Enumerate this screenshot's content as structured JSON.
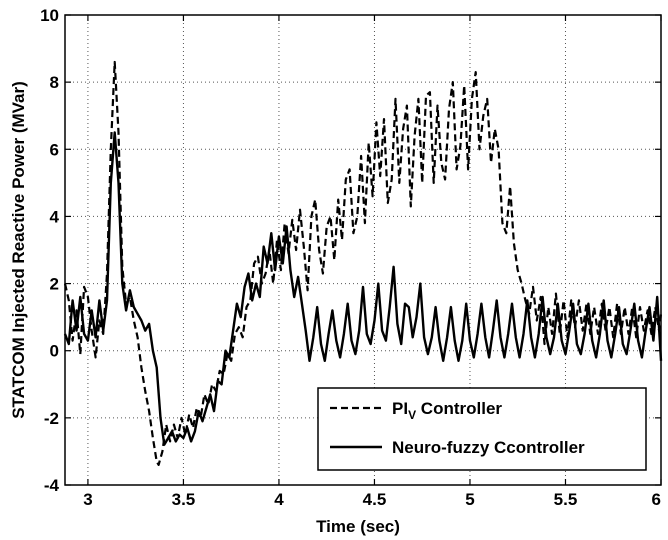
{
  "chart_data": {
    "type": "line",
    "xlabel": "Time (sec)",
    "ylabel": "STATCOM Injected Reactive Power (MVar)",
    "xlim": [
      2.88,
      6.0
    ],
    "ylim": [
      -4,
      10
    ],
    "x_ticks": [
      "3",
      "3.5",
      "4",
      "4.5",
      "5",
      "5.5",
      "6"
    ],
    "y_ticks": [
      "-4",
      "-2",
      "0",
      "2",
      "4",
      "6",
      "8",
      "10"
    ],
    "grid": true,
    "legend_position": "bottom-right",
    "series": [
      {
        "name": "PIV Controller",
        "legend_main": "PI",
        "legend_sub": "V",
        "legend_rest": " Controller",
        "style": "dashed",
        "color": "#000000",
        "points": [
          [
            2.88,
            2.0
          ],
          [
            2.9,
            1.5
          ],
          [
            2.92,
            0.3
          ],
          [
            2.94,
            1.2
          ],
          [
            2.96,
            -0.1
          ],
          [
            2.98,
            1.9
          ],
          [
            3.0,
            1.6
          ],
          [
            3.02,
            0.6
          ],
          [
            3.04,
            -0.2
          ],
          [
            3.06,
            0.9
          ],
          [
            3.08,
            0.5
          ],
          [
            3.1,
            2.3
          ],
          [
            3.12,
            6.0
          ],
          [
            3.14,
            8.6
          ],
          [
            3.16,
            6.5
          ],
          [
            3.18,
            2.5
          ],
          [
            3.2,
            1.4
          ],
          [
            3.22,
            1.6
          ],
          [
            3.24,
            0.9
          ],
          [
            3.26,
            0.4
          ],
          [
            3.28,
            -0.5
          ],
          [
            3.3,
            -1.2
          ],
          [
            3.32,
            -1.8
          ],
          [
            3.34,
            -2.6
          ],
          [
            3.36,
            -3.3
          ],
          [
            3.37,
            -3.4
          ],
          [
            3.39,
            -3.0
          ],
          [
            3.41,
            -2.2
          ],
          [
            3.43,
            -2.7
          ],
          [
            3.45,
            -2.2
          ],
          [
            3.47,
            -2.6
          ],
          [
            3.49,
            -2.0
          ],
          [
            3.51,
            -2.5
          ],
          [
            3.53,
            -1.9
          ],
          [
            3.55,
            -2.3
          ],
          [
            3.57,
            -1.7
          ],
          [
            3.59,
            -2.0
          ],
          [
            3.61,
            -1.3
          ],
          [
            3.63,
            -1.6
          ],
          [
            3.65,
            -1.0
          ],
          [
            3.67,
            -1.2
          ],
          [
            3.69,
            -0.6
          ],
          [
            3.71,
            -0.7
          ],
          [
            3.73,
            -0.1
          ],
          [
            3.75,
            -0.3
          ],
          [
            3.77,
            0.5
          ],
          [
            3.79,
            0.7
          ],
          [
            3.81,
            0.4
          ],
          [
            3.83,
            1.3
          ],
          [
            3.85,
            1.5
          ],
          [
            3.87,
            2.6
          ],
          [
            3.89,
            2.8
          ],
          [
            3.91,
            2.0
          ],
          [
            3.93,
            2.3
          ],
          [
            3.95,
            3.0
          ],
          [
            3.97,
            2.0
          ],
          [
            3.99,
            3.3
          ],
          [
            4.01,
            2.4
          ],
          [
            4.03,
            3.8
          ],
          [
            4.05,
            2.9
          ],
          [
            4.07,
            3.9
          ],
          [
            4.09,
            3.0
          ],
          [
            4.11,
            4.2
          ],
          [
            4.13,
            3.1
          ],
          [
            4.15,
            1.8
          ],
          [
            4.17,
            4.0
          ],
          [
            4.19,
            4.5
          ],
          [
            4.21,
            3.0
          ],
          [
            4.23,
            2.3
          ],
          [
            4.25,
            3.7
          ],
          [
            4.27,
            4.0
          ],
          [
            4.29,
            2.7
          ],
          [
            4.31,
            4.5
          ],
          [
            4.33,
            3.3
          ],
          [
            4.35,
            5.1
          ],
          [
            4.37,
            5.4
          ],
          [
            4.39,
            3.5
          ],
          [
            4.41,
            4.0
          ],
          [
            4.43,
            5.8
          ],
          [
            4.45,
            3.8
          ],
          [
            4.47,
            6.2
          ],
          [
            4.49,
            4.6
          ],
          [
            4.51,
            6.8
          ],
          [
            4.53,
            5.2
          ],
          [
            4.55,
            6.9
          ],
          [
            4.57,
            4.4
          ],
          [
            4.59,
            5.1
          ],
          [
            4.61,
            7.5
          ],
          [
            4.63,
            5.0
          ],
          [
            4.65,
            6.6
          ],
          [
            4.67,
            7.3
          ],
          [
            4.69,
            4.3
          ],
          [
            4.71,
            6.4
          ],
          [
            4.73,
            7.5
          ],
          [
            4.75,
            5.0
          ],
          [
            4.77,
            7.6
          ],
          [
            4.79,
            7.7
          ],
          [
            4.81,
            5.0
          ],
          [
            4.83,
            7.3
          ],
          [
            4.85,
            5.6
          ],
          [
            4.87,
            5.1
          ],
          [
            4.89,
            7.2
          ],
          [
            4.91,
            8.0
          ],
          [
            4.93,
            5.4
          ],
          [
            4.95,
            6.1
          ],
          [
            4.97,
            7.9
          ],
          [
            4.99,
            5.4
          ],
          [
            5.01,
            7.5
          ],
          [
            5.03,
            8.3
          ],
          [
            5.05,
            6.0
          ],
          [
            5.07,
            7.0
          ],
          [
            5.09,
            7.5
          ],
          [
            5.11,
            5.6
          ],
          [
            5.13,
            6.6
          ],
          [
            5.15,
            6.0
          ],
          [
            5.17,
            3.8
          ],
          [
            5.19,
            3.5
          ],
          [
            5.21,
            4.9
          ],
          [
            5.23,
            3.2
          ],
          [
            5.25,
            2.4
          ],
          [
            5.27,
            2.0
          ],
          [
            5.29,
            1.5
          ],
          [
            5.31,
            1.1
          ],
          [
            5.33,
            1.9
          ],
          [
            5.35,
            0.9
          ],
          [
            5.37,
            1.6
          ],
          [
            5.39,
            0.2
          ],
          [
            5.41,
            1.3
          ],
          [
            5.43,
            0.5
          ],
          [
            5.45,
            1.7
          ],
          [
            5.47,
            0.5
          ],
          [
            5.49,
            1.5
          ],
          [
            5.51,
            0.4
          ],
          [
            5.53,
            1.5
          ],
          [
            5.55,
            0.7
          ],
          [
            5.57,
            1.5
          ],
          [
            5.59,
            0.6
          ],
          [
            5.61,
            1.4
          ],
          [
            5.63,
            0.5
          ],
          [
            5.65,
            1.3
          ],
          [
            5.67,
            0.5
          ],
          [
            5.69,
            1.4
          ],
          [
            5.71,
            0.6
          ],
          [
            5.73,
            1.3
          ],
          [
            5.75,
            0.4
          ],
          [
            5.77,
            1.4
          ],
          [
            5.79,
            0.5
          ],
          [
            5.81,
            1.3
          ],
          [
            5.83,
            0.5
          ],
          [
            5.85,
            1.3
          ],
          [
            5.87,
            0.4
          ],
          [
            5.89,
            1.3
          ],
          [
            5.91,
            0.6
          ],
          [
            5.93,
            1.2
          ],
          [
            5.95,
            0.5
          ],
          [
            5.97,
            1.3
          ],
          [
            5.99,
            0.6
          ],
          [
            6.0,
            1.1
          ]
        ]
      },
      {
        "name": "Neuro-fuzzy Ccontroller",
        "legend_main": "Neuro-fuzzy Ccontroller",
        "style": "solid",
        "color": "#000000",
        "points": [
          [
            2.88,
            0.5
          ],
          [
            2.9,
            0.2
          ],
          [
            2.92,
            1.5
          ],
          [
            2.94,
            0.6
          ],
          [
            2.96,
            1.6
          ],
          [
            2.98,
            0.5
          ],
          [
            3.0,
            0.3
          ],
          [
            3.02,
            1.2
          ],
          [
            3.04,
            0.4
          ],
          [
            3.06,
            1.5
          ],
          [
            3.08,
            0.6
          ],
          [
            3.1,
            1.5
          ],
          [
            3.12,
            5.0
          ],
          [
            3.14,
            6.5
          ],
          [
            3.16,
            5.0
          ],
          [
            3.18,
            2.0
          ],
          [
            3.2,
            1.2
          ],
          [
            3.22,
            1.8
          ],
          [
            3.24,
            1.3
          ],
          [
            3.26,
            1.1
          ],
          [
            3.28,
            0.9
          ],
          [
            3.3,
            0.6
          ],
          [
            3.32,
            0.8
          ],
          [
            3.34,
            0.0
          ],
          [
            3.36,
            -0.5
          ],
          [
            3.38,
            -2.0
          ],
          [
            3.4,
            -2.8
          ],
          [
            3.42,
            -2.6
          ],
          [
            3.44,
            -2.4
          ],
          [
            3.46,
            -2.7
          ],
          [
            3.48,
            -2.5
          ],
          [
            3.5,
            -2.6
          ],
          [
            3.52,
            -2.3
          ],
          [
            3.54,
            -2.7
          ],
          [
            3.56,
            -2.4
          ],
          [
            3.58,
            -1.8
          ],
          [
            3.6,
            -2.1
          ],
          [
            3.62,
            -1.7
          ],
          [
            3.64,
            -1.3
          ],
          [
            3.66,
            -1.8
          ],
          [
            3.68,
            -0.9
          ],
          [
            3.7,
            -1.0
          ],
          [
            3.72,
            0.0
          ],
          [
            3.74,
            -0.2
          ],
          [
            3.76,
            0.6
          ],
          [
            3.78,
            1.4
          ],
          [
            3.8,
            1.0
          ],
          [
            3.82,
            1.9
          ],
          [
            3.84,
            2.3
          ],
          [
            3.86,
            1.5
          ],
          [
            3.88,
            2.0
          ],
          [
            3.9,
            1.6
          ],
          [
            3.92,
            3.1
          ],
          [
            3.94,
            2.6
          ],
          [
            3.96,
            3.5
          ],
          [
            3.98,
            2.4
          ],
          [
            4.0,
            3.4
          ],
          [
            4.02,
            2.6
          ],
          [
            4.04,
            3.7
          ],
          [
            4.06,
            2.4
          ],
          [
            4.08,
            1.6
          ],
          [
            4.1,
            2.2
          ],
          [
            4.12,
            1.4
          ],
          [
            4.14,
            0.6
          ],
          [
            4.16,
            -0.3
          ],
          [
            4.18,
            0.4
          ],
          [
            4.2,
            1.3
          ],
          [
            4.22,
            0.2
          ],
          [
            4.24,
            -0.3
          ],
          [
            4.26,
            0.5
          ],
          [
            4.28,
            1.2
          ],
          [
            4.3,
            0.3
          ],
          [
            4.32,
            -0.2
          ],
          [
            4.34,
            0.5
          ],
          [
            4.36,
            1.4
          ],
          [
            4.38,
            0.3
          ],
          [
            4.4,
            -0.1
          ],
          [
            4.42,
            0.6
          ],
          [
            4.44,
            1.9
          ],
          [
            4.46,
            0.5
          ],
          [
            4.48,
            0.2
          ],
          [
            4.5,
            0.9
          ],
          [
            4.52,
            2.0
          ],
          [
            4.54,
            0.6
          ],
          [
            4.56,
            0.3
          ],
          [
            4.58,
            1.3
          ],
          [
            4.6,
            2.5
          ],
          [
            4.62,
            0.8
          ],
          [
            4.64,
            0.2
          ],
          [
            4.66,
            1.4
          ],
          [
            4.68,
            1.3
          ],
          [
            4.7,
            0.4
          ],
          [
            4.72,
            1.0
          ],
          [
            4.74,
            2.0
          ],
          [
            4.76,
            0.4
          ],
          [
            4.78,
            -0.1
          ],
          [
            4.8,
            0.4
          ],
          [
            4.82,
            1.3
          ],
          [
            4.84,
            0.3
          ],
          [
            4.86,
            -0.3
          ],
          [
            4.88,
            0.4
          ],
          [
            4.9,
            1.3
          ],
          [
            4.92,
            0.3
          ],
          [
            4.94,
            -0.3
          ],
          [
            4.96,
            0.3
          ],
          [
            4.98,
            1.4
          ],
          [
            5.0,
            0.3
          ],
          [
            5.02,
            -0.2
          ],
          [
            5.04,
            0.5
          ],
          [
            5.06,
            1.4
          ],
          [
            5.08,
            0.4
          ],
          [
            5.1,
            -0.2
          ],
          [
            5.12,
            0.6
          ],
          [
            5.14,
            1.5
          ],
          [
            5.16,
            0.4
          ],
          [
            5.18,
            -0.2
          ],
          [
            5.2,
            0.5
          ],
          [
            5.22,
            1.4
          ],
          [
            5.24,
            0.4
          ],
          [
            5.26,
            -0.2
          ],
          [
            5.28,
            0.5
          ],
          [
            5.3,
            1.5
          ],
          [
            5.32,
            0.4
          ],
          [
            5.34,
            -0.2
          ],
          [
            5.36,
            0.5
          ],
          [
            5.38,
            1.6
          ],
          [
            5.4,
            0.4
          ],
          [
            5.42,
            -0.1
          ],
          [
            5.44,
            0.4
          ],
          [
            5.46,
            1.4
          ],
          [
            5.48,
            0.3
          ],
          [
            5.5,
            -0.1
          ],
          [
            5.52,
            0.6
          ],
          [
            5.54,
            1.4
          ],
          [
            5.56,
            0.2
          ],
          [
            5.58,
            -0.1
          ],
          [
            5.6,
            0.5
          ],
          [
            5.62,
            1.4
          ],
          [
            5.64,
            0.3
          ],
          [
            5.66,
            -0.2
          ],
          [
            5.68,
            0.5
          ],
          [
            5.7,
            1.5
          ],
          [
            5.72,
            0.3
          ],
          [
            5.74,
            -0.2
          ],
          [
            5.76,
            0.5
          ],
          [
            5.78,
            1.3
          ],
          [
            5.8,
            0.2
          ],
          [
            5.82,
            -0.1
          ],
          [
            5.84,
            0.6
          ],
          [
            5.86,
            1.4
          ],
          [
            5.88,
            0.3
          ],
          [
            5.9,
            -0.2
          ],
          [
            5.92,
            0.6
          ],
          [
            5.94,
            1.3
          ],
          [
            5.96,
            0.3
          ],
          [
            5.98,
            1.6
          ],
          [
            6.0,
            -0.3
          ]
        ]
      }
    ]
  }
}
